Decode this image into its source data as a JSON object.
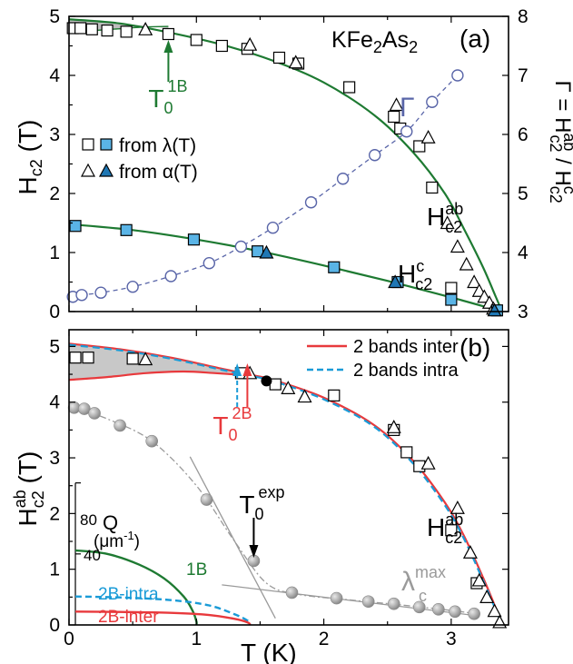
{
  "chart_data": [
    {
      "panel_label": "(a)",
      "type": "scatter",
      "compound": {
        "base": "KFe",
        "s1": "2",
        "mid": "As",
        "s2": "2"
      },
      "ylabel": {
        "main": "H",
        "sub": "c2",
        "unit": "(T)"
      },
      "y2label": {
        "text": "Γ = H",
        "sup1": "ab",
        "sub1": "c2",
        "mid": " / H",
        "sup2": "c",
        "sub2": "c2"
      },
      "xlim": [
        0,
        3.45
      ],
      "ylim": [
        0,
        5
      ],
      "y2lim": [
        3,
        8
      ],
      "xticks": [
        0,
        1,
        2,
        3
      ],
      "yticks": [
        0,
        1,
        2,
        3,
        4,
        5
      ],
      "y2ticks": [
        3,
        4,
        5,
        6,
        7,
        8
      ],
      "legend": {
        "position": "center-left",
        "entries": [
          {
            "label": "from λ(T)",
            "symbols": [
              "open-square",
              "filled-square"
            ]
          },
          {
            "label": "from α(T)",
            "symbols": [
              "open-triangle",
              "filled-triangle"
            ]
          }
        ]
      },
      "annotations": {
        "t0_1b": {
          "main": "T",
          "sub": "0",
          "sup": "1B",
          "x": 0.78,
          "color": "#1e7a32"
        },
        "gamma": {
          "text": "Γ",
          "color": "#5965a8"
        },
        "hc2ab": {
          "main": "H",
          "sup": "ab",
          "sub": "c2"
        },
        "hc2c": {
          "main": "H",
          "sup": "c",
          "sub": "c2"
        }
      },
      "series": [
        {
          "id": "Hab_lambda",
          "marker": "open-square",
          "x": [
            0.03,
            0.09,
            0.18,
            0.3,
            0.45,
            0.78,
            1.0,
            1.2,
            1.4,
            1.65,
            1.8,
            2.2,
            2.55,
            2.6,
            2.75,
            2.85,
            3.0
          ],
          "y": [
            4.8,
            4.8,
            4.78,
            4.76,
            4.74,
            4.7,
            4.6,
            4.5,
            4.45,
            4.3,
            4.2,
            3.8,
            3.3,
            3.1,
            2.8,
            2.1,
            0.4
          ]
        },
        {
          "id": "Hab_alpha",
          "marker": "open-triangle",
          "x": [
            0.6,
            1.42,
            1.78,
            2.57,
            2.82,
            2.97,
            3.05,
            3.12,
            3.18,
            3.22,
            3.26,
            3.3,
            3.33
          ],
          "y": [
            4.78,
            4.52,
            4.22,
            3.5,
            2.95,
            1.5,
            1.1,
            0.8,
            0.5,
            0.35,
            0.25,
            0.15,
            0.05
          ]
        },
        {
          "id": "Hc_lambda",
          "marker": "filled-square",
          "x": [
            0.05,
            0.45,
            0.98,
            1.48,
            2.08,
            2.58,
            3.0,
            3.36
          ],
          "y": [
            1.45,
            1.38,
            1.22,
            1.02,
            0.75,
            0.5,
            0.2,
            0.02
          ]
        },
        {
          "id": "Hc_alpha",
          "marker": "filled-triangle",
          "x": [
            1.55,
            2.56,
            3.34
          ],
          "y": [
            1.0,
            0.5,
            0.02
          ]
        },
        {
          "id": "Gamma",
          "axis": "right",
          "marker": "open-circle",
          "color": "#5965a8",
          "x": [
            0.03,
            0.1,
            0.25,
            0.5,
            0.8,
            1.1,
            1.35,
            1.6,
            1.9,
            2.15,
            2.4,
            2.65,
            2.85,
            3.05
          ],
          "y": [
            3.25,
            3.28,
            3.32,
            3.42,
            3.6,
            3.82,
            4.1,
            4.42,
            4.85,
            5.25,
            5.65,
            6.05,
            6.55,
            7.0
          ]
        }
      ],
      "fits": [
        {
          "id": "Hab_fit",
          "color": "#1e7a32",
          "x": [
            0,
            0.4,
            0.8,
            1.2,
            1.6,
            2.0,
            2.4,
            2.7,
            2.95,
            3.1,
            3.25,
            3.35,
            3.4
          ],
          "y": [
            4.95,
            4.88,
            4.72,
            4.52,
            4.25,
            3.88,
            3.32,
            2.7,
            2.0,
            1.4,
            0.75,
            0.25,
            0.0
          ]
        },
        {
          "id": "Hc_fit",
          "color": "#1e7a32",
          "x": [
            0,
            0.5,
            1.0,
            1.5,
            2.0,
            2.5,
            3.0,
            3.4
          ],
          "y": [
            1.48,
            1.38,
            1.22,
            1.02,
            0.78,
            0.52,
            0.24,
            0.0
          ]
        },
        {
          "id": "Hab_lowT_band",
          "color": "#1e7a32",
          "x": [
            0,
            0.2,
            0.4,
            0.6,
            0.78
          ],
          "y": [
            4.72,
            4.76,
            4.79,
            4.82,
            4.83
          ]
        }
      ]
    },
    {
      "panel_label": "(b)",
      "type": "scatter",
      "xlabel": "T (K)",
      "ylabel": {
        "main": "H",
        "sup": "ab",
        "sub": "c2",
        "unit": "(T)"
      },
      "xlim": [
        0,
        3.45
      ],
      "ylim": [
        0,
        5.3
      ],
      "xticks": [
        0,
        1,
        2,
        3
      ],
      "yticks": [
        0,
        1,
        2,
        3,
        4,
        5
      ],
      "legend": {
        "position": "top-right",
        "entries": [
          {
            "label": "2 bands inter",
            "color": "#e8393c",
            "style": "solid"
          },
          {
            "label": "2 bands intra",
            "color": "#1a9bd7",
            "style": "dashed"
          }
        ]
      },
      "inset": {
        "ylabel": {
          "main": "Q",
          "unit_main": "(μm",
          "unit_sup": "-1",
          "unit_end": ")"
        },
        "yticks": [
          40,
          80
        ],
        "ylim": [
          0,
          80
        ],
        "curves": [
          {
            "label": "1B",
            "color": "#1e7a32",
            "style": "solid",
            "x": [
              0.05,
              0.3,
              0.55,
              0.75,
              0.9,
              0.97,
              1.0,
              1.0
            ],
            "y": [
              42,
              40,
              34,
              26,
              16,
              8,
              2,
              0
            ]
          },
          {
            "label": "2B-intra",
            "color": "#1a9bd7",
            "style": "dashed",
            "x": [
              0.05,
              0.4,
              0.8,
              1.1,
              1.3,
              1.4,
              1.42,
              1.42
            ],
            "y": [
              16,
              15.5,
              14,
              11,
              6,
              2.5,
              0.5,
              0
            ]
          },
          {
            "label": "2B-inter",
            "color": "#e8393c",
            "style": "solid",
            "x": [
              0.05,
              0.4,
              0.8,
              1.1,
              1.3,
              1.4,
              1.42,
              1.42
            ],
            "y": [
              7.5,
              7.3,
              6.8,
              5.6,
              3.4,
              1.5,
              0.3,
              0
            ]
          }
        ]
      },
      "annotations": {
        "t0_2b": {
          "main": "T",
          "sub": "0",
          "sup": "2B",
          "x": 1.4,
          "color": "#e8393c"
        },
        "t0_exp": {
          "main": "T",
          "sub": "0",
          "sup": "exp",
          "x": 1.45
        },
        "lambda_max": {
          "main": "λ",
          "sup": "max",
          "sub": "c",
          "color": "#9a9a9a"
        },
        "hc2ab": {
          "main": "H",
          "sup": "ab",
          "sub": "c2"
        }
      },
      "series": [
        {
          "id": "Hab_open_square",
          "marker": "open-square",
          "x": [
            0.05,
            0.15,
            0.5,
            1.35,
            1.62,
            2.08,
            2.55,
            2.65,
            2.75,
            3.0,
            3.2
          ],
          "y": [
            4.8,
            4.8,
            4.78,
            4.52,
            4.32,
            4.12,
            3.5,
            3.1,
            2.85,
            1.7,
            0.75
          ]
        },
        {
          "id": "Hab_open_triangle",
          "marker": "open-triangle",
          "x": [
            0.6,
            1.42,
            1.72,
            1.85,
            2.55,
            2.82,
            3.05,
            3.15,
            3.22,
            3.28,
            3.34,
            3.38
          ],
          "y": [
            4.77,
            4.52,
            4.25,
            4.1,
            3.55,
            2.9,
            2.1,
            1.3,
            0.8,
            0.5,
            0.25,
            0.05
          ]
        },
        {
          "id": "T0_exp_point",
          "marker": "filled-circle",
          "color": "#000000",
          "x": [
            1.55
          ],
          "y": [
            4.38
          ]
        },
        {
          "id": "lambda_max",
          "marker": "gray-sphere",
          "color": "#9a9a9a",
          "x": [
            0.04,
            0.12,
            0.2,
            0.4,
            0.65,
            1.08,
            1.45,
            1.75,
            2.1,
            2.35,
            2.55,
            2.75,
            2.9,
            3.03,
            3.18
          ],
          "y": [
            3.9,
            3.88,
            3.8,
            3.58,
            3.3,
            2.25,
            1.15,
            0.58,
            0.48,
            0.42,
            0.38,
            0.32,
            0.28,
            0.24,
            0.2
          ]
        }
      ],
      "fits": [
        {
          "id": "two_band_inter",
          "color": "#e8393c",
          "style": "solid",
          "x": [
            0,
            0.4,
            0.8,
            1.2,
            1.45,
            1.6,
            2.0,
            2.4,
            2.7,
            2.95,
            3.1,
            3.25,
            3.35,
            3.4
          ],
          "y": [
            5.05,
            4.95,
            4.8,
            4.6,
            4.48,
            4.4,
            4.08,
            3.58,
            2.95,
            2.2,
            1.6,
            0.85,
            0.3,
            0.0
          ]
        },
        {
          "id": "two_band_intra",
          "color": "#1a9bd7",
          "style": "dashed",
          "x": [
            0,
            0.4,
            0.8,
            1.2,
            1.45,
            1.6,
            2.0,
            2.4,
            2.7,
            2.95,
            3.1,
            3.25,
            3.35,
            3.4
          ],
          "y": [
            5.03,
            4.93,
            4.78,
            4.58,
            4.46,
            4.38,
            4.05,
            3.55,
            2.9,
            2.15,
            1.55,
            0.8,
            0.27,
            0.0
          ]
        },
        {
          "id": "lower_branch",
          "color": "#e8393c",
          "style": "solid",
          "x": [
            0,
            0.3,
            0.6,
            0.9,
            1.15,
            1.4
          ],
          "y": [
            4.4,
            4.45,
            4.52,
            4.55,
            4.52,
            4.48
          ]
        },
        {
          "id": "lambda_guide",
          "color": "#9a9a9a",
          "style": "dashdot",
          "x": [
            0.04,
            0.3,
            0.65,
            1.0,
            1.3,
            1.55,
            1.8,
            2.2,
            2.6,
            3.0,
            3.2
          ],
          "y": [
            3.9,
            3.7,
            3.3,
            2.5,
            1.5,
            0.75,
            0.55,
            0.45,
            0.36,
            0.26,
            0.2
          ]
        },
        {
          "id": "tangent_steep",
          "color": "#9a9a9a",
          "style": "solid",
          "x": [
            0.95,
            1.62
          ],
          "y": [
            3.02,
            0.12
          ]
        },
        {
          "id": "tangent_flat",
          "color": "#9a9a9a",
          "style": "solid",
          "x": [
            1.2,
            3.15
          ],
          "y": [
            0.72,
            0.18
          ]
        }
      ]
    }
  ]
}
